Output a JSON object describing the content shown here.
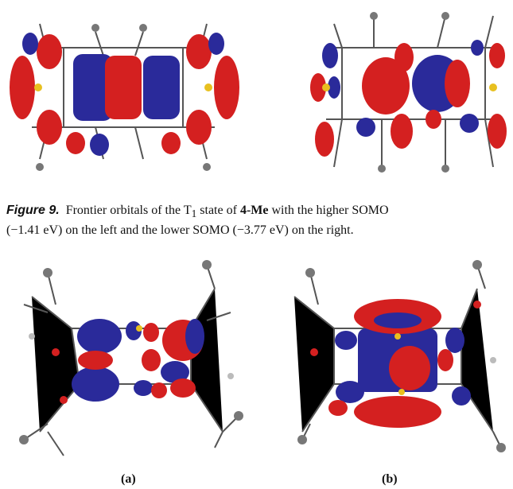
{
  "caption": {
    "label": "Figure 9.",
    "text_1": "Frontier orbitals of the",
    "state": "T",
    "state_sub": "1",
    "text_2": "state of",
    "compound": "4-Me",
    "text_3": "with the higher SOMO",
    "text_4": "(−1.41 eV) on the left and the lower SOMO (−3.77 eV) on the right."
  },
  "panels": [
    {
      "label": "(a)"
    },
    {
      "label": "(b)"
    }
  ]
}
